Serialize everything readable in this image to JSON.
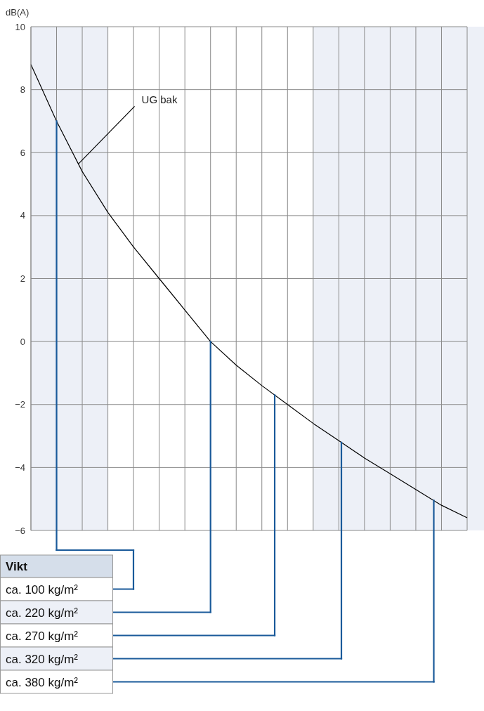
{
  "chart_data": {
    "type": "line",
    "ylabel": "dB(A)",
    "categories": [
      null,
      null,
      null,
      null,
      null,
      null,
      null,
      null,
      null,
      null,
      null,
      null,
      null,
      null,
      null,
      null,
      null,
      null
    ],
    "ylim": [
      -6,
      10
    ],
    "yticks": [
      {
        "value": -6,
        "label": "−6"
      },
      {
        "value": -4,
        "label": "−4"
      },
      {
        "value": -2,
        "label": "−2"
      },
      0,
      2,
      4,
      6,
      8,
      10
    ],
    "tick_labels": "y",
    "grid": true,
    "marker": "none",
    "line_style": "solid",
    "series": [
      {
        "name": "UG bak",
        "color": "#000000",
        "values": [
          8.8,
          7.0,
          5.4,
          4.1,
          3.0,
          2.0,
          1.0,
          0,
          -0.75,
          -1.4,
          -2.0,
          -2.6,
          -3.15,
          -3.7,
          -4.2,
          -4.7,
          -5.2,
          -5.6
        ]
      }
    ],
    "annotations": [
      "Vikt",
      "ca. 100 kg/m²",
      "ca. 220 kg/m²",
      "ca. 270 kg/m²",
      "ca. 320 kg/m²",
      "ca. 380 kg/m²"
    ]
  }
}
